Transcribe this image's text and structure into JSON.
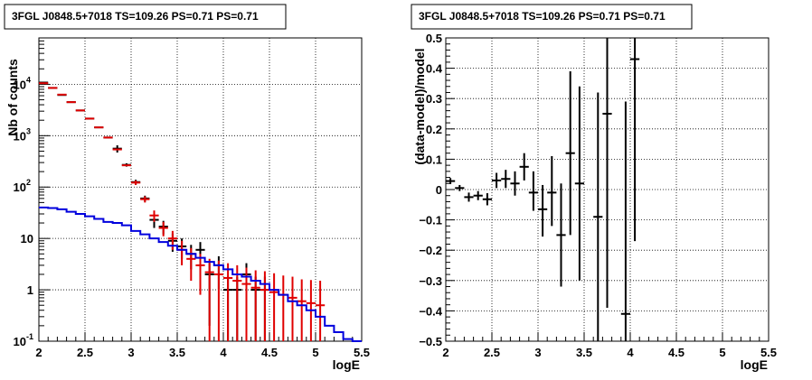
{
  "chart_data": [
    {
      "type": "scatter",
      "title": "3FGL J0848.5+7018 TS=109.26 PS=0.71 PS=0.71",
      "xlabel": "logE",
      "ylabel": "Nb of counts",
      "xlim": [
        2,
        5.5
      ],
      "ylim": [
        0.1,
        80000
      ],
      "yscale": "log",
      "grid": true,
      "x_tick_labels": [
        "2",
        "2.5",
        "3",
        "3.5",
        "4",
        "4.5",
        "5",
        "5.5"
      ],
      "y_tick_labels": [
        {
          "value": 0.1,
          "base": "10",
          "exp": "-1"
        },
        {
          "value": 1,
          "base": "1",
          "exp": ""
        },
        {
          "value": 10,
          "base": "10",
          "exp": ""
        },
        {
          "value": 100,
          "base": "10",
          "exp": "2"
        },
        {
          "value": 1000,
          "base": "10",
          "exp": "3"
        },
        {
          "value": 10000,
          "base": "10",
          "exp": "4"
        }
      ],
      "series": [
        {
          "color": "#000000",
          "style": "errorbar",
          "points": [
            [
              2.05,
              10800,
              0,
              0
            ],
            [
              2.15,
              8500,
              0,
              0
            ],
            [
              2.25,
              6200,
              0,
              0
            ],
            [
              2.35,
              4500,
              0,
              0
            ],
            [
              2.45,
              3100,
              0,
              0
            ],
            [
              2.55,
              2150,
              0,
              0
            ],
            [
              2.65,
              1450,
              0,
              0
            ],
            [
              2.75,
              920,
              0,
              0
            ],
            [
              2.85,
              560,
              90,
              90
            ],
            [
              2.95,
              270,
              20,
              20
            ],
            [
              3.05,
              125,
              14,
              14
            ],
            [
              3.15,
              60,
              8,
              8
            ],
            [
              3.25,
              23,
              7,
              7
            ],
            [
              3.35,
              17,
              5,
              5
            ],
            [
              3.45,
              9,
              3.5,
              3.5
            ],
            [
              3.55,
              7,
              3,
              3
            ],
            [
              3.65,
              5,
              2.5,
              2.5
            ],
            [
              3.75,
              6,
              3,
              2.5
            ],
            [
              3.85,
              2,
              1.8,
              1.3
            ],
            [
              3.95,
              3,
              2,
              1.5
            ],
            [
              4.05,
              1,
              0.9,
              0.8
            ],
            [
              4.15,
              1,
              0.9,
              0.8
            ],
            [
              4.25,
              2,
              1.8,
              1.3
            ],
            [
              4.35,
              1,
              0.9,
              0.8
            ],
            [
              4.45,
              1,
              0.9,
              0.8
            ]
          ]
        },
        {
          "color": "#e00000",
          "style": "errorbar",
          "points": [
            [
              2.05,
              10500,
              0,
              0
            ],
            [
              2.15,
              8500,
              0,
              0
            ],
            [
              2.25,
              6300,
              0,
              0
            ],
            [
              2.35,
              4500,
              0,
              0
            ],
            [
              2.45,
              3100,
              0,
              0
            ],
            [
              2.55,
              2150,
              0,
              0
            ],
            [
              2.65,
              1450,
              0,
              0
            ],
            [
              2.75,
              920,
              0,
              0
            ],
            [
              2.85,
              540,
              0,
              0
            ],
            [
              2.95,
              265,
              0,
              0
            ],
            [
              3.05,
              122,
              12,
              12
            ],
            [
              3.15,
              58,
              8,
              8
            ],
            [
              3.25,
              28,
              7,
              7
            ],
            [
              3.35,
              16,
              5,
              5
            ],
            [
              3.45,
              10,
              4,
              4
            ],
            [
              3.55,
              6,
              3,
              3
            ],
            [
              3.65,
              4,
              2.5,
              2.5
            ],
            [
              3.75,
              3,
              2.2,
              2
            ],
            [
              3.85,
              2.2,
              2.1,
              1.8
            ],
            [
              3.95,
              2,
              1.95,
              1.7
            ],
            [
              4.05,
              1.7,
              1.65,
              1.6
            ],
            [
              4.15,
              1.5,
              1.45,
              1.5
            ],
            [
              4.25,
              1.3,
              1.25,
              1.4
            ],
            [
              4.35,
              1.1,
              1.05,
              1.3
            ],
            [
              4.45,
              1,
              0.95,
              1.3
            ],
            [
              4.55,
              0.9,
              0.85,
              1.2
            ],
            [
              4.65,
              0.8,
              0.75,
              1.1
            ],
            [
              4.75,
              0.7,
              0.65,
              1.1
            ],
            [
              4.85,
              0.6,
              0.55,
              1
            ],
            [
              4.95,
              0.55,
              0.5,
              1
            ],
            [
              5.05,
              0.5,
              0.45,
              1
            ]
          ]
        },
        {
          "color": "#0000dd",
          "style": "step",
          "bin_edges": [
            2.0,
            2.1,
            2.2,
            2.3,
            2.4,
            2.5,
            2.6,
            2.7,
            2.8,
            2.9,
            3.0,
            3.1,
            3.2,
            3.3,
            3.4,
            3.5,
            3.6,
            3.7,
            3.8,
            3.9,
            4.0,
            4.1,
            4.2,
            4.3,
            4.4,
            4.5,
            4.6,
            4.7,
            4.8,
            4.9,
            5.0,
            5.1,
            5.2,
            5.3,
            5.4,
            5.5
          ],
          "values": [
            40,
            39,
            37,
            33,
            30,
            27,
            24,
            21,
            20,
            18,
            14,
            12,
            10,
            8.5,
            7.2,
            6,
            5,
            4.2,
            3.5,
            3,
            2.5,
            2,
            1.8,
            1.5,
            1.3,
            1,
            0.8,
            0.6,
            0.5,
            0.4,
            0.3,
            0.2,
            0.15,
            0.11,
            0.1
          ]
        }
      ]
    },
    {
      "type": "scatter",
      "title": "3FGL J0848.5+7018 TS=109.26 PS=0.71 PS=0.71",
      "xlabel": "logE",
      "ylabel": "(data-model)/model",
      "xlim": [
        2,
        5.5
      ],
      "ylim": [
        -0.5,
        0.5
      ],
      "grid": true,
      "x_tick_labels": [
        "2",
        "2.5",
        "3",
        "3.5",
        "4",
        "4.5",
        "5",
        "5.5"
      ],
      "y_tick_labels": [
        "−0.5",
        "−0.4",
        "−0.3",
        "−0.2",
        "−0.1",
        "0",
        "0.1",
        "0.2",
        "0.3",
        "0.4",
        "0.5"
      ],
      "series": [
        {
          "color": "#000000",
          "style": "errorbar",
          "points": [
            [
              2.05,
              0.028,
              0.01,
              0.01
            ],
            [
              2.15,
              0.005,
              0.01,
              0.01
            ],
            [
              2.25,
              -0.025,
              0.015,
              0.015
            ],
            [
              2.35,
              -0.02,
              0.015,
              0.015
            ],
            [
              2.45,
              -0.032,
              0.02,
              0.02
            ],
            [
              2.55,
              0.03,
              0.025,
              0.025
            ],
            [
              2.65,
              0.035,
              0.03,
              0.03
            ],
            [
              2.75,
              0.02,
              0.04,
              0.04
            ],
            [
              2.85,
              0.075,
              0.045,
              0.045
            ],
            [
              2.95,
              -0.01,
              0.06,
              0.07
            ],
            [
              3.05,
              -0.065,
              0.09,
              0.08
            ],
            [
              3.15,
              -0.01,
              0.11,
              0.12
            ],
            [
              3.25,
              -0.15,
              0.17,
              0.17
            ],
            [
              3.35,
              0.12,
              0.27,
              0.27
            ],
            [
              3.45,
              0.02,
              0.32,
              0.32
            ],
            [
              3.65,
              -0.09,
              0.41,
              0.41
            ],
            [
              3.75,
              0.25,
              0.64,
              0.64
            ],
            [
              3.95,
              -0.41,
              0.7,
              0.7
            ],
            [
              4.05,
              0.43,
              0.6,
              0.6
            ]
          ]
        }
      ]
    }
  ]
}
